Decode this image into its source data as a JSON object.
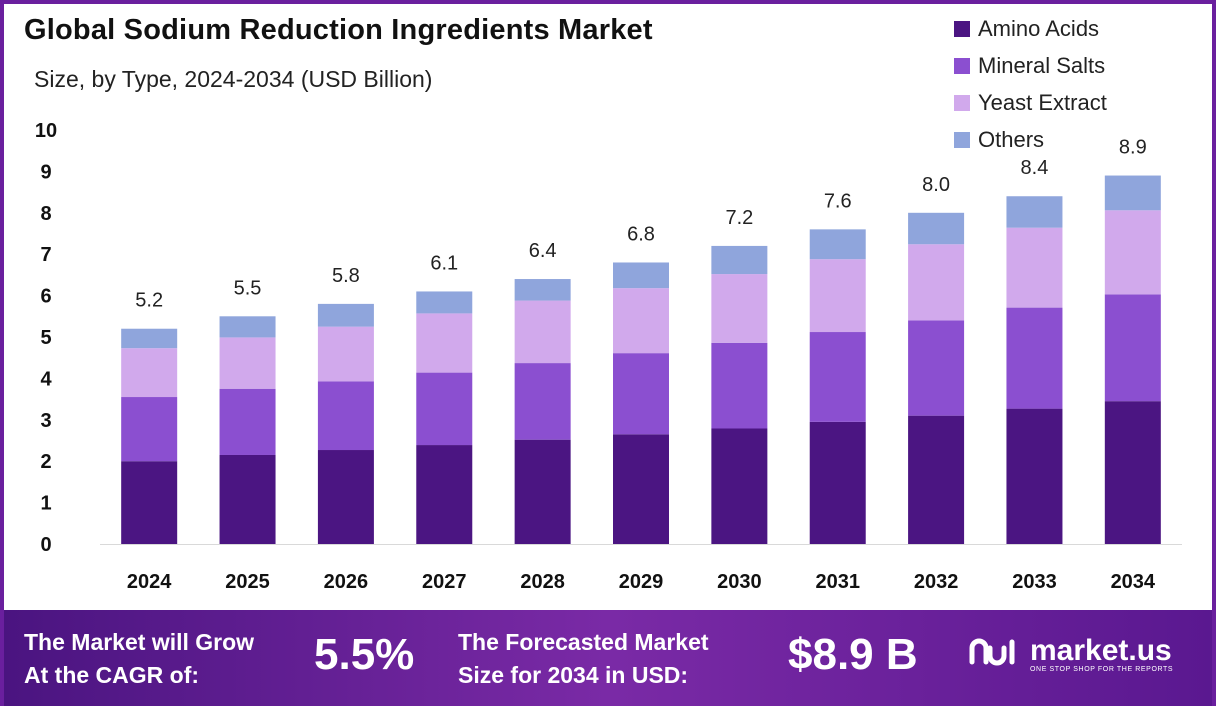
{
  "title": "Global Sodium Reduction Ingredients Market",
  "subtitle": "Size, by Type, 2024-2034 (USD Billion)",
  "legend": [
    {
      "label": "Amino Acids",
      "color": "#4b1582"
    },
    {
      "label": "Mineral Salts",
      "color": "#8b4fd0"
    },
    {
      "label": "Yeast Extract",
      "color": "#d1a9ec"
    },
    {
      "label": "Others",
      "color": "#8fa5dc"
    }
  ],
  "chart_data": {
    "type": "bar",
    "stacked": true,
    "title": "Global Sodium Reduction Ingredients Market",
    "subtitle": "Size, by Type, 2024-2034 (USD Billion)",
    "categories": [
      "2024",
      "2025",
      "2026",
      "2027",
      "2028",
      "2029",
      "2030",
      "2031",
      "2032",
      "2033",
      "2034"
    ],
    "series": [
      {
        "name": "Amino Acids",
        "values": [
          2.0,
          2.15,
          2.27,
          2.39,
          2.52,
          2.65,
          2.79,
          2.95,
          3.1,
          3.27,
          3.45
        ],
        "color": "#4b1582"
      },
      {
        "name": "Mineral Salts",
        "values": [
          1.55,
          1.6,
          1.66,
          1.75,
          1.85,
          1.96,
          2.07,
          2.17,
          2.3,
          2.44,
          2.58
        ],
        "color": "#8b4fd0"
      },
      {
        "name": "Yeast Extract",
        "values": [
          1.18,
          1.24,
          1.32,
          1.43,
          1.51,
          1.57,
          1.66,
          1.76,
          1.84,
          1.93,
          2.03
        ],
        "color": "#d1a9ec"
      },
      {
        "name": "Others",
        "values": [
          0.47,
          0.51,
          0.55,
          0.53,
          0.52,
          0.62,
          0.68,
          0.72,
          0.76,
          0.76,
          0.84
        ],
        "color": "#8fa5dc"
      }
    ],
    "totals": [
      "5.2",
      "5.5",
      "5.8",
      "6.1",
      "6.4",
      "6.8",
      "7.2",
      "7.6",
      "8.0",
      "8.4",
      "8.9"
    ],
    "yticks": [
      "0",
      "1",
      "2",
      "3",
      "4",
      "5",
      "6",
      "7",
      "8",
      "9",
      "10"
    ],
    "ylim": [
      0,
      10
    ],
    "xlabel": "",
    "ylabel": "",
    "legend_position": "top-right",
    "grid": false
  },
  "footer": {
    "cagr_label_line1": "The Market will Grow",
    "cagr_label_line2": "At the CAGR of:",
    "cagr_value": "5.5%",
    "forecast_label_line1": "The Forecasted Market",
    "forecast_label_line2": "Size for 2034 in USD:",
    "forecast_value": "$8.9 B",
    "brand_name": "market.us",
    "brand_tagline": "ONE STOP SHOP FOR THE REPORTS"
  }
}
